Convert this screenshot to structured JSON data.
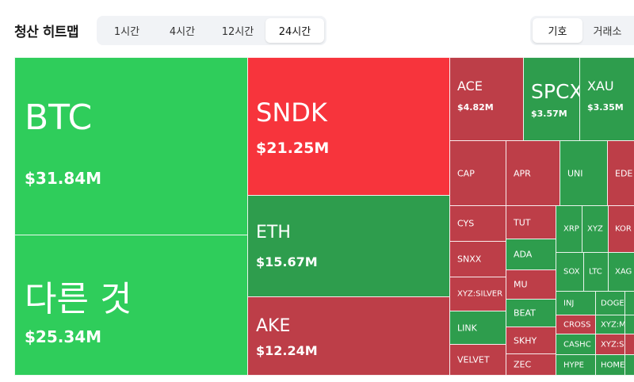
{
  "header": {
    "title": "청산 히트맵",
    "time_options": [
      "1시간",
      "4시간",
      "12시간",
      "24시간"
    ],
    "selected_time": "24시간",
    "view_options": [
      "기호",
      "거래소"
    ],
    "selected_view": "기호"
  },
  "colors": {
    "green": "#2fcd5b",
    "dark_green": "#2e9d4d",
    "red": "#f7343c",
    "dark_red": "#bd3e48"
  },
  "tiles": [
    {
      "symbol": "BTC",
      "value": "$31.84M"
    },
    {
      "symbol": "다른 것",
      "value": "$25.34M"
    },
    {
      "symbol": "SNDK",
      "value": "$21.25M"
    },
    {
      "symbol": "ETH",
      "value": "$15.67M"
    },
    {
      "symbol": "AKE",
      "value": "$12.24M"
    },
    {
      "symbol": "ACE",
      "value": "$4.82M"
    },
    {
      "symbol": "SPCX",
      "value": "$3.57M"
    },
    {
      "symbol": "XAU",
      "value": "$3.35M"
    },
    {
      "symbol": "CAP"
    },
    {
      "symbol": "APR"
    },
    {
      "symbol": "UNI"
    },
    {
      "symbol": "EDE"
    },
    {
      "symbol": "CYS"
    },
    {
      "symbol": "TUT"
    },
    {
      "symbol": "XRP"
    },
    {
      "symbol": "XYZ"
    },
    {
      "symbol": "KOR"
    },
    {
      "symbol": "SNXX"
    },
    {
      "symbol": "ADA"
    },
    {
      "symbol": "SOX"
    },
    {
      "symbol": "LTC"
    },
    {
      "symbol": "XAG"
    },
    {
      "symbol": "XYZ:SILVER"
    },
    {
      "symbol": "MU"
    },
    {
      "symbol": "INJ"
    },
    {
      "symbol": "DOGE"
    },
    {
      "symbol": "LINK"
    },
    {
      "symbol": "BEAT"
    },
    {
      "symbol": "CROSS"
    },
    {
      "symbol": "XYZ:M"
    },
    {
      "symbol": "SKHY"
    },
    {
      "symbol": "CASHC"
    },
    {
      "symbol": "XYZ:S"
    },
    {
      "symbol": "VELVET"
    },
    {
      "symbol": "ZEC"
    },
    {
      "symbol": "HYPE"
    },
    {
      "symbol": "HOME"
    }
  ]
}
